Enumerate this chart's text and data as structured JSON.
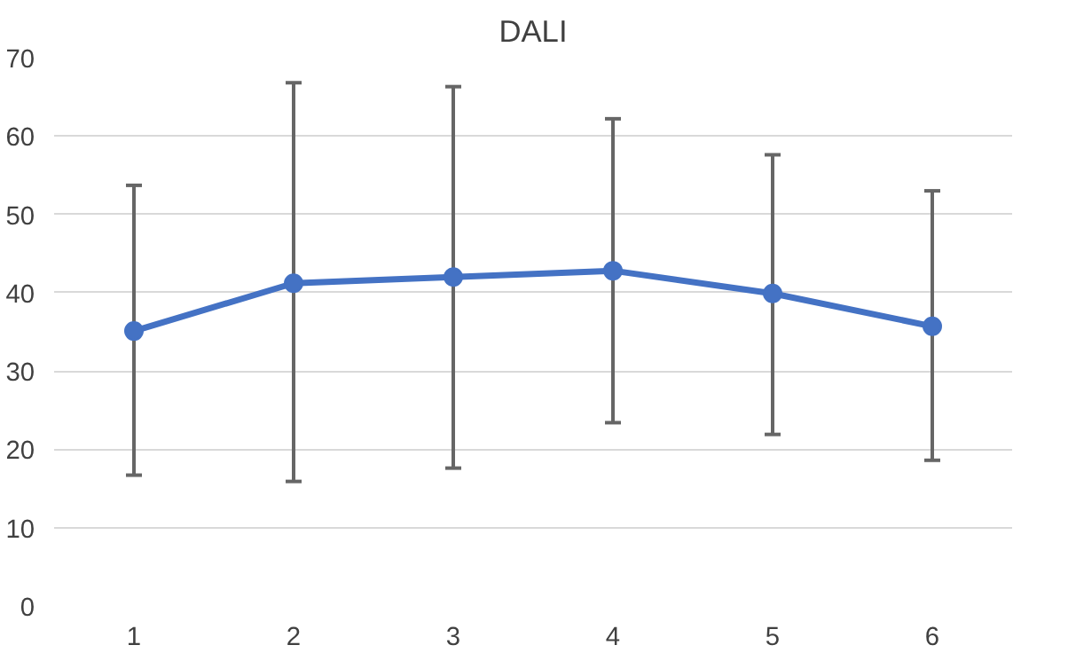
{
  "chart_data": {
    "type": "line",
    "title": "DALI",
    "categories": [
      "1",
      "2",
      "3",
      "4",
      "5",
      "6"
    ],
    "series": [
      {
        "color": "#4472c4",
        "values": [
          35.1,
          41.2,
          42.0,
          42.8,
          39.9,
          35.7
        ],
        "errors": [
          [
            16.7,
            53.7
          ],
          [
            15.9,
            66.8
          ],
          [
            17.6,
            66.3
          ],
          [
            23.4,
            62.2
          ],
          [
            21.9,
            57.6
          ],
          [
            18.6,
            53.0
          ]
        ]
      }
    ],
    "ylim": [
      0,
      70
    ],
    "yticks": [
      0,
      10,
      20,
      30,
      40,
      50,
      60,
      70
    ],
    "grid": "y",
    "marker": "circle",
    "line_style": "solid"
  }
}
